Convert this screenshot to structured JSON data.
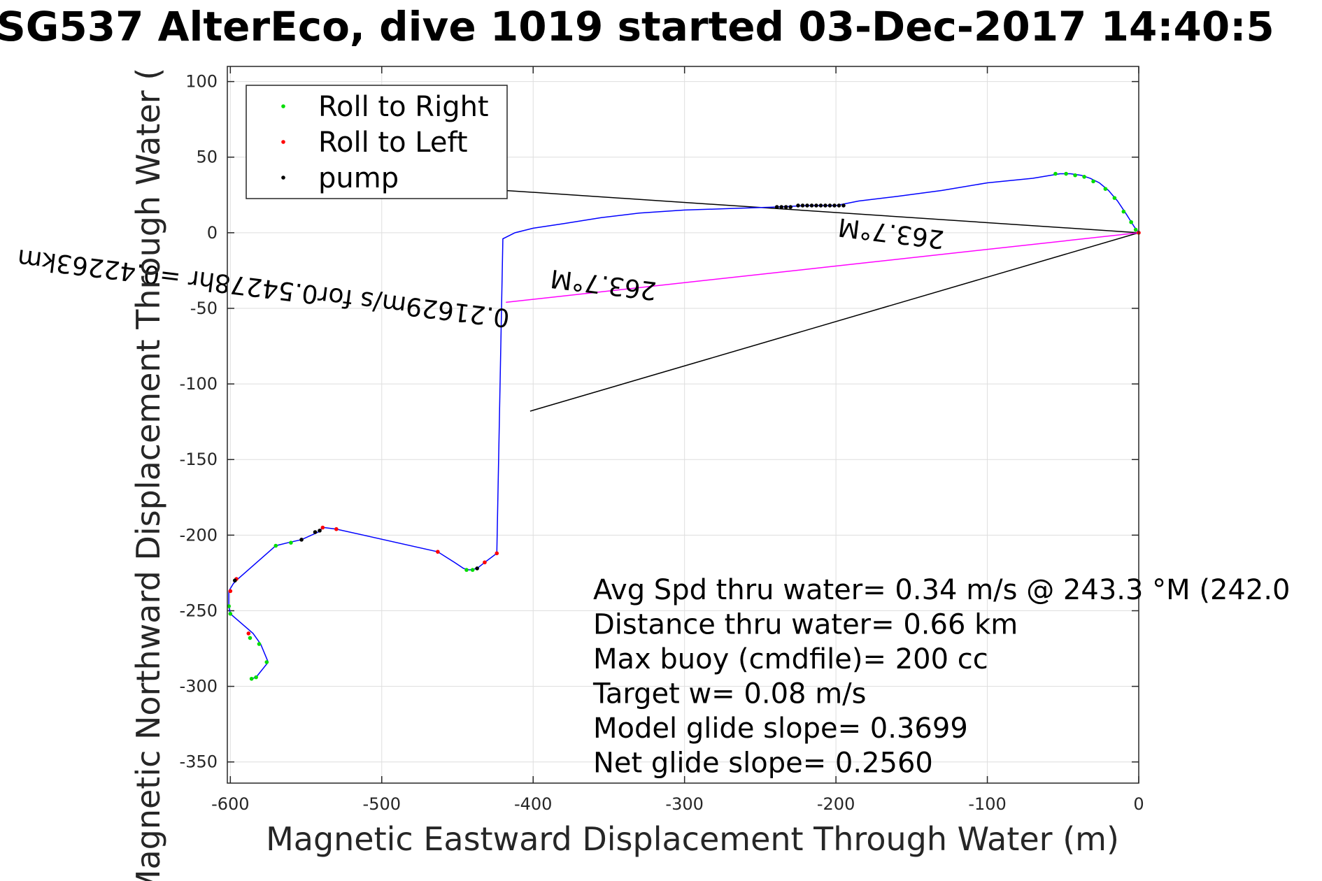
{
  "chart_data": {
    "type": "scatter",
    "title": "SG537 AlterEco, dive 1019 started 03-Dec-2017 14:40:5",
    "xlabel": "Magnetic Eastward Displacement Through Water (m)",
    "ylabel": "Magnetic Northward Displacement Through Water (",
    "xlim": [
      -602,
      0
    ],
    "ylim": [
      -364,
      110
    ],
    "xticks": [
      -600,
      -500,
      -400,
      -300,
      -200,
      -100,
      0
    ],
    "yticks": [
      100,
      50,
      0,
      -50,
      -100,
      -150,
      -200,
      -250,
      -300,
      -350
    ],
    "grid": true,
    "legend": {
      "placement": "top-left",
      "entries": [
        {
          "label": "Roll to Right",
          "color": "#00dd00"
        },
        {
          "label": "Roll to Left",
          "color": "#ff0000"
        },
        {
          "label": "pump",
          "color": "#000000"
        }
      ]
    },
    "track_color": "#0000ff",
    "track": [
      [
        0,
        0
      ],
      [
        -3,
        4
      ],
      [
        -8,
        12
      ],
      [
        -14,
        21
      ],
      [
        -20,
        28
      ],
      [
        -26,
        33
      ],
      [
        -32,
        36
      ],
      [
        -38,
        38
      ],
      [
        -45,
        39
      ],
      [
        -52,
        39
      ],
      [
        -70,
        36
      ],
      [
        -100,
        33
      ],
      [
        -130,
        28
      ],
      [
        -160,
        24
      ],
      [
        -185,
        21
      ],
      [
        -200,
        18
      ],
      [
        -218,
        18
      ],
      [
        -240,
        17
      ],
      [
        -270,
        16
      ],
      [
        -300,
        15
      ],
      [
        -330,
        13
      ],
      [
        -355,
        10
      ],
      [
        -380,
        6
      ],
      [
        -400,
        3
      ],
      [
        -412,
        0
      ],
      [
        -420,
        -4
      ],
      [
        -424,
        -212
      ],
      [
        -432,
        -218
      ],
      [
        -437,
        -222
      ],
      [
        -442,
        -223
      ],
      [
        -446,
        -222
      ],
      [
        -452,
        -218
      ],
      [
        -463,
        -211
      ],
      [
        -530,
        -196
      ],
      [
        -538,
        -195
      ],
      [
        -540,
        -196
      ],
      [
        -542,
        -198
      ],
      [
        -553,
        -203
      ],
      [
        -562,
        -205
      ],
      [
        -570,
        -207
      ],
      [
        -595,
        -229
      ],
      [
        -598,
        -232
      ],
      [
        -601,
        -237
      ],
      [
        -601,
        -247
      ],
      [
        -600,
        -252
      ],
      [
        -585,
        -265
      ],
      [
        -580,
        -272
      ],
      [
        -575,
        -284
      ],
      [
        -583,
        -294
      ],
      [
        -586,
        -295
      ]
    ],
    "roll_right_points": [
      [
        -2,
        2
      ],
      [
        -5,
        7
      ],
      [
        -10,
        14
      ],
      [
        -16,
        23
      ],
      [
        -22,
        29
      ],
      [
        -30,
        34
      ],
      [
        -36,
        37
      ],
      [
        -42,
        38
      ],
      [
        -48,
        39
      ],
      [
        -55,
        39
      ],
      [
        -440,
        -223
      ],
      [
        -444,
        -223
      ],
      [
        -570,
        -207
      ],
      [
        -560,
        -205
      ],
      [
        -601,
        -247
      ],
      [
        -600,
        -252
      ],
      [
        -581,
        -272
      ],
      [
        -586,
        -295
      ],
      [
        -583,
        -294
      ],
      [
        -576,
        -284
      ],
      [
        -587,
        -268
      ]
    ],
    "roll_left_points": [
      [
        0,
        0
      ],
      [
        -424,
        -212
      ],
      [
        -432,
        -218
      ],
      [
        -463,
        -211
      ],
      [
        -530,
        -196
      ],
      [
        -539,
        -195
      ],
      [
        -596,
        -229
      ],
      [
        -600,
        -237
      ],
      [
        -588,
        -265
      ]
    ],
    "pump_points": [
      [
        -195,
        18
      ],
      [
        -198,
        18
      ],
      [
        -201,
        18
      ],
      [
        -204,
        18
      ],
      [
        -207,
        18
      ],
      [
        -210,
        18
      ],
      [
        -213,
        18
      ],
      [
        -216,
        18
      ],
      [
        -219,
        18
      ],
      [
        -222,
        18
      ],
      [
        -225,
        18
      ],
      [
        -230,
        17
      ],
      [
        -233,
        17
      ],
      [
        -236,
        17
      ],
      [
        -239,
        17
      ],
      [
        -437,
        -222
      ],
      [
        -541,
        -197
      ],
      [
        -544,
        -198
      ],
      [
        -553,
        -203
      ],
      [
        -597,
        -230
      ]
    ],
    "vectors": [
      {
        "from": [
          0,
          0
        ],
        "to": [
          -419,
          28
        ],
        "color": "#000000"
      },
      {
        "from": [
          0,
          0
        ],
        "to": [
          -402,
          -118
        ],
        "color": "#000000"
      },
      {
        "from": [
          0,
          0
        ],
        "to": [
          -418,
          -46
        ],
        "color": "#ff00ff"
      }
    ],
    "vector_labels": [
      {
        "text": "0.21629m/s for0.54278hr =0.42263km",
        "at": [
          -415,
          -51
        ],
        "rotation": 187
      },
      {
        "text": "263.7°M",
        "at": [
          -318,
          -33
        ],
        "rotation": 187
      },
      {
        "text": "263.7°M",
        "at": [
          -128,
          1
        ],
        "rotation": 187
      }
    ],
    "stats": [
      "Avg Spd thru water=  0.34 m/s @ 243.3 °M (242.0",
      "Distance thru water=  0.66 km",
      "Max buoy (cmdfile)= 200 cc",
      "Target w= 0.08 m/s",
      "Model glide slope= 0.3699",
      "Net glide slope= 0.2560"
    ]
  }
}
